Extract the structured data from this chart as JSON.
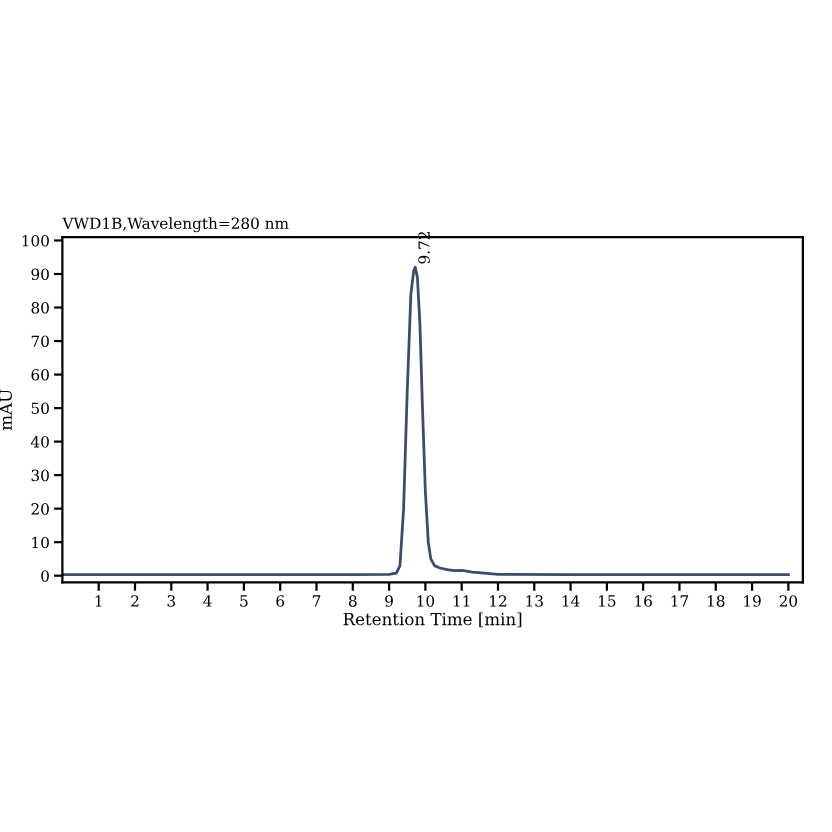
{
  "chart_data": {
    "type": "line",
    "title": "VWD1B,Wavelength=280 nm",
    "xlabel": "Retention Time [min]",
    "ylabel": "mAU",
    "x": [
      0,
      2,
      4,
      6,
      8,
      9.0,
      9.2,
      9.3,
      9.4,
      9.5,
      9.6,
      9.68,
      9.72,
      9.78,
      9.85,
      9.92,
      10.0,
      10.08,
      10.15,
      10.25,
      10.4,
      10.6,
      10.8,
      11.0,
      11.3,
      11.7,
      12.0,
      14,
      16,
      18,
      20
    ],
    "series": [
      {
        "color": "#3c4b6e",
        "values": [
          0.3,
          0.3,
          0.3,
          0.3,
          0.3,
          0.4,
          0.8,
          3,
          20,
          55,
          84,
          91,
          92,
          89,
          75,
          50,
          25,
          10,
          5,
          3,
          2.3,
          1.8,
          1.5,
          1.6,
          1.1,
          0.7,
          0.4,
          0.3,
          0.3,
          0.3,
          0.3
        ]
      }
    ],
    "annotations": [
      {
        "text": "9.72",
        "x": 9.72,
        "y": 92
      }
    ],
    "xlim": [
      0,
      20.4
    ],
    "ylim": [
      -2,
      101
    ],
    "xticks": [
      1,
      2,
      3,
      4,
      5,
      6,
      7,
      8,
      9,
      10,
      11,
      12,
      13,
      14,
      15,
      16,
      17,
      18,
      19,
      20
    ],
    "yticks": [
      0,
      10,
      20,
      30,
      40,
      50,
      60,
      70,
      80,
      90,
      100
    ],
    "grid": false,
    "legend": false,
    "marker": "none",
    "line_style": "solid"
  }
}
